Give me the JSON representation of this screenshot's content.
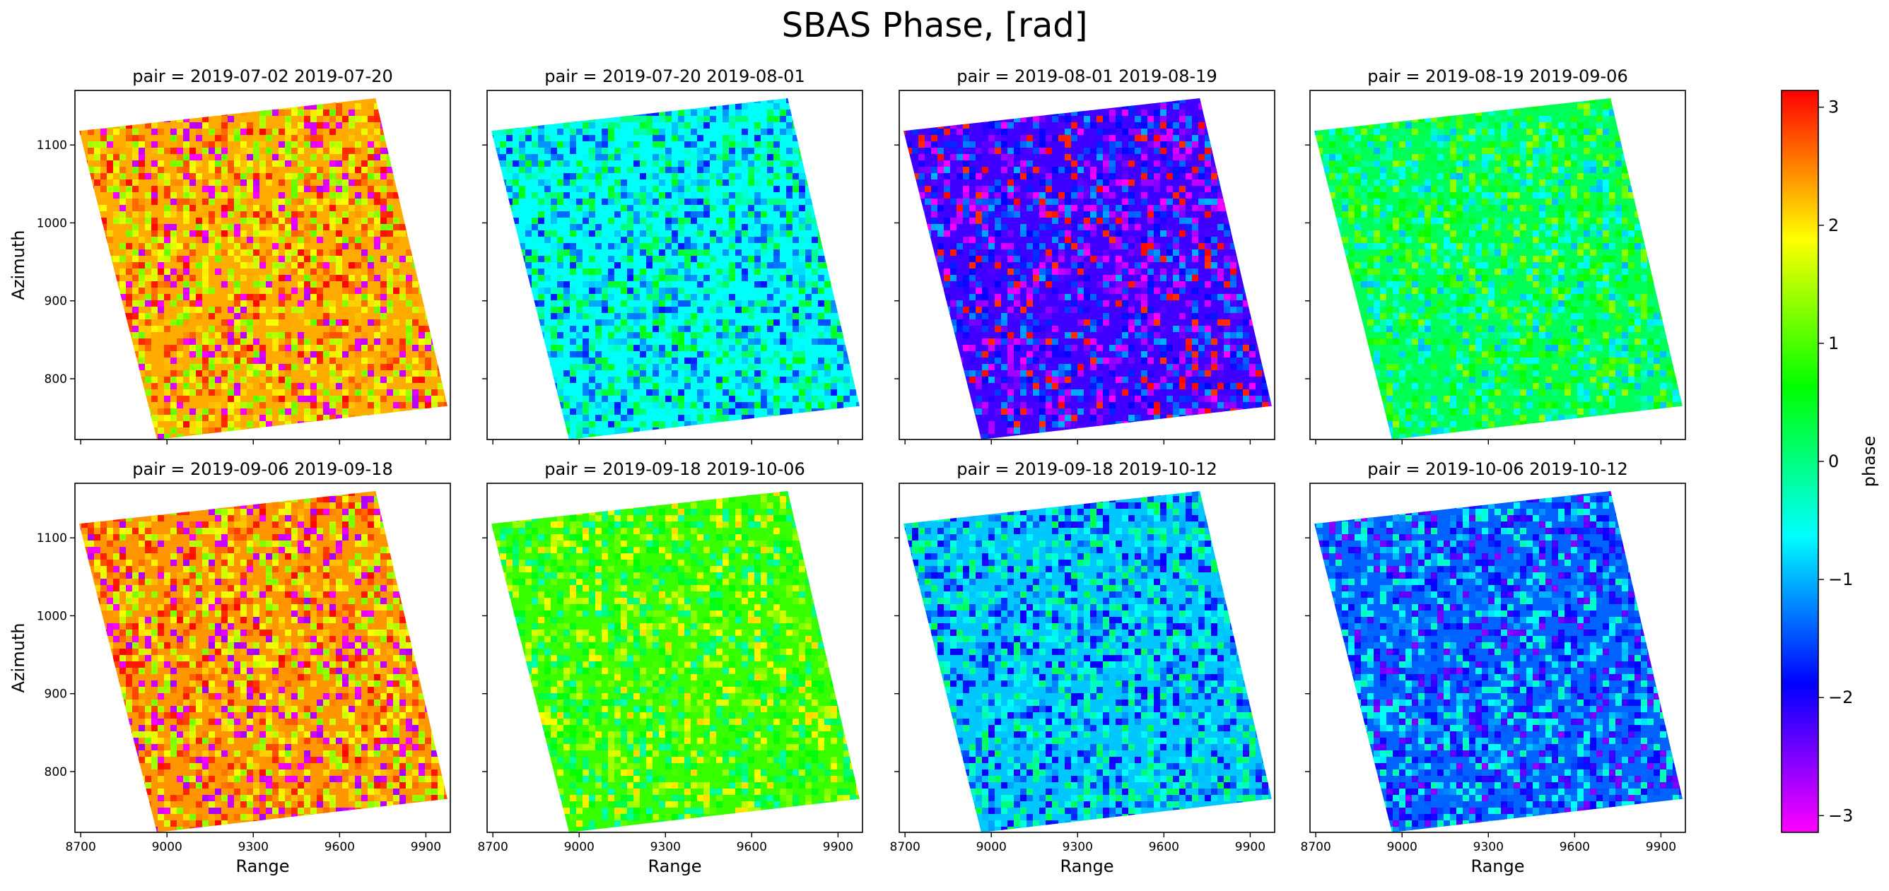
{
  "chart_data": {
    "type": "heatmap",
    "title": "SBAS Phase, [rad]",
    "xlabel": "Range",
    "ylabel": "Azimuth",
    "xlim": [
      8680,
      9985
    ],
    "ylim": [
      722,
      1170
    ],
    "x_ticks": [
      8700,
      9000,
      9300,
      9600,
      9900
    ],
    "x_tick_labels": [
      "8700",
      "9000",
      "9300",
      "9600",
      "9900"
    ],
    "y_ticks": [
      800,
      900,
      1000,
      1100
    ],
    "y_tick_labels": [
      "800",
      "900",
      "1000",
      "1100"
    ],
    "footprint_corners": [
      {
        "x": 8695,
        "y": 1118
      },
      {
        "x": 9725,
        "y": 1160
      },
      {
        "x": 9975,
        "y": 765
      },
      {
        "x": 8965,
        "y": 722
      }
    ],
    "colorbar": {
      "label": "phase",
      "range": [
        -3.1416,
        3.1416
      ],
      "ticks": [
        3,
        2,
        1,
        0,
        -1,
        -2,
        -3
      ],
      "tick_labels": [
        "3",
        "2",
        "1",
        "0",
        "−1",
        "−2",
        "−3"
      ],
      "colormap": "gist_rainbow_r"
    },
    "panels": [
      {
        "title": "pair = 2019-07-02 2019-07-20",
        "pair": [
          "2019-07-02",
          "2019-07-20"
        ],
        "approx_dominant_phase": 2.3
      },
      {
        "title": "pair = 2019-07-20 2019-08-01",
        "pair": [
          "2019-07-20",
          "2019-08-01"
        ],
        "approx_dominant_phase": -0.6
      },
      {
        "title": "pair = 2019-08-01 2019-08-19",
        "pair": [
          "2019-08-01",
          "2019-08-19"
        ],
        "approx_dominant_phase": -2.2
      },
      {
        "title": "pair = 2019-08-19 2019-09-06",
        "pair": [
          "2019-08-19",
          "2019-09-06"
        ],
        "approx_dominant_phase": 0.2
      },
      {
        "title": "pair = 2019-09-06 2019-09-18",
        "pair": [
          "2019-09-06",
          "2019-09-18"
        ],
        "approx_dominant_phase": 2.4
      },
      {
        "title": "pair = 2019-09-18 2019-10-06",
        "pair": [
          "2019-09-18",
          "2019-10-06"
        ],
        "approx_dominant_phase": 0.9
      },
      {
        "title": "pair = 2019-09-18 2019-10-12",
        "pair": [
          "2019-09-18",
          "2019-10-12"
        ],
        "approx_dominant_phase": -0.9
      },
      {
        "title": "pair = 2019-10-06 2019-10-12",
        "pair": [
          "2019-10-06",
          "2019-10-12"
        ],
        "approx_dominant_phase": -1.4
      }
    ]
  }
}
